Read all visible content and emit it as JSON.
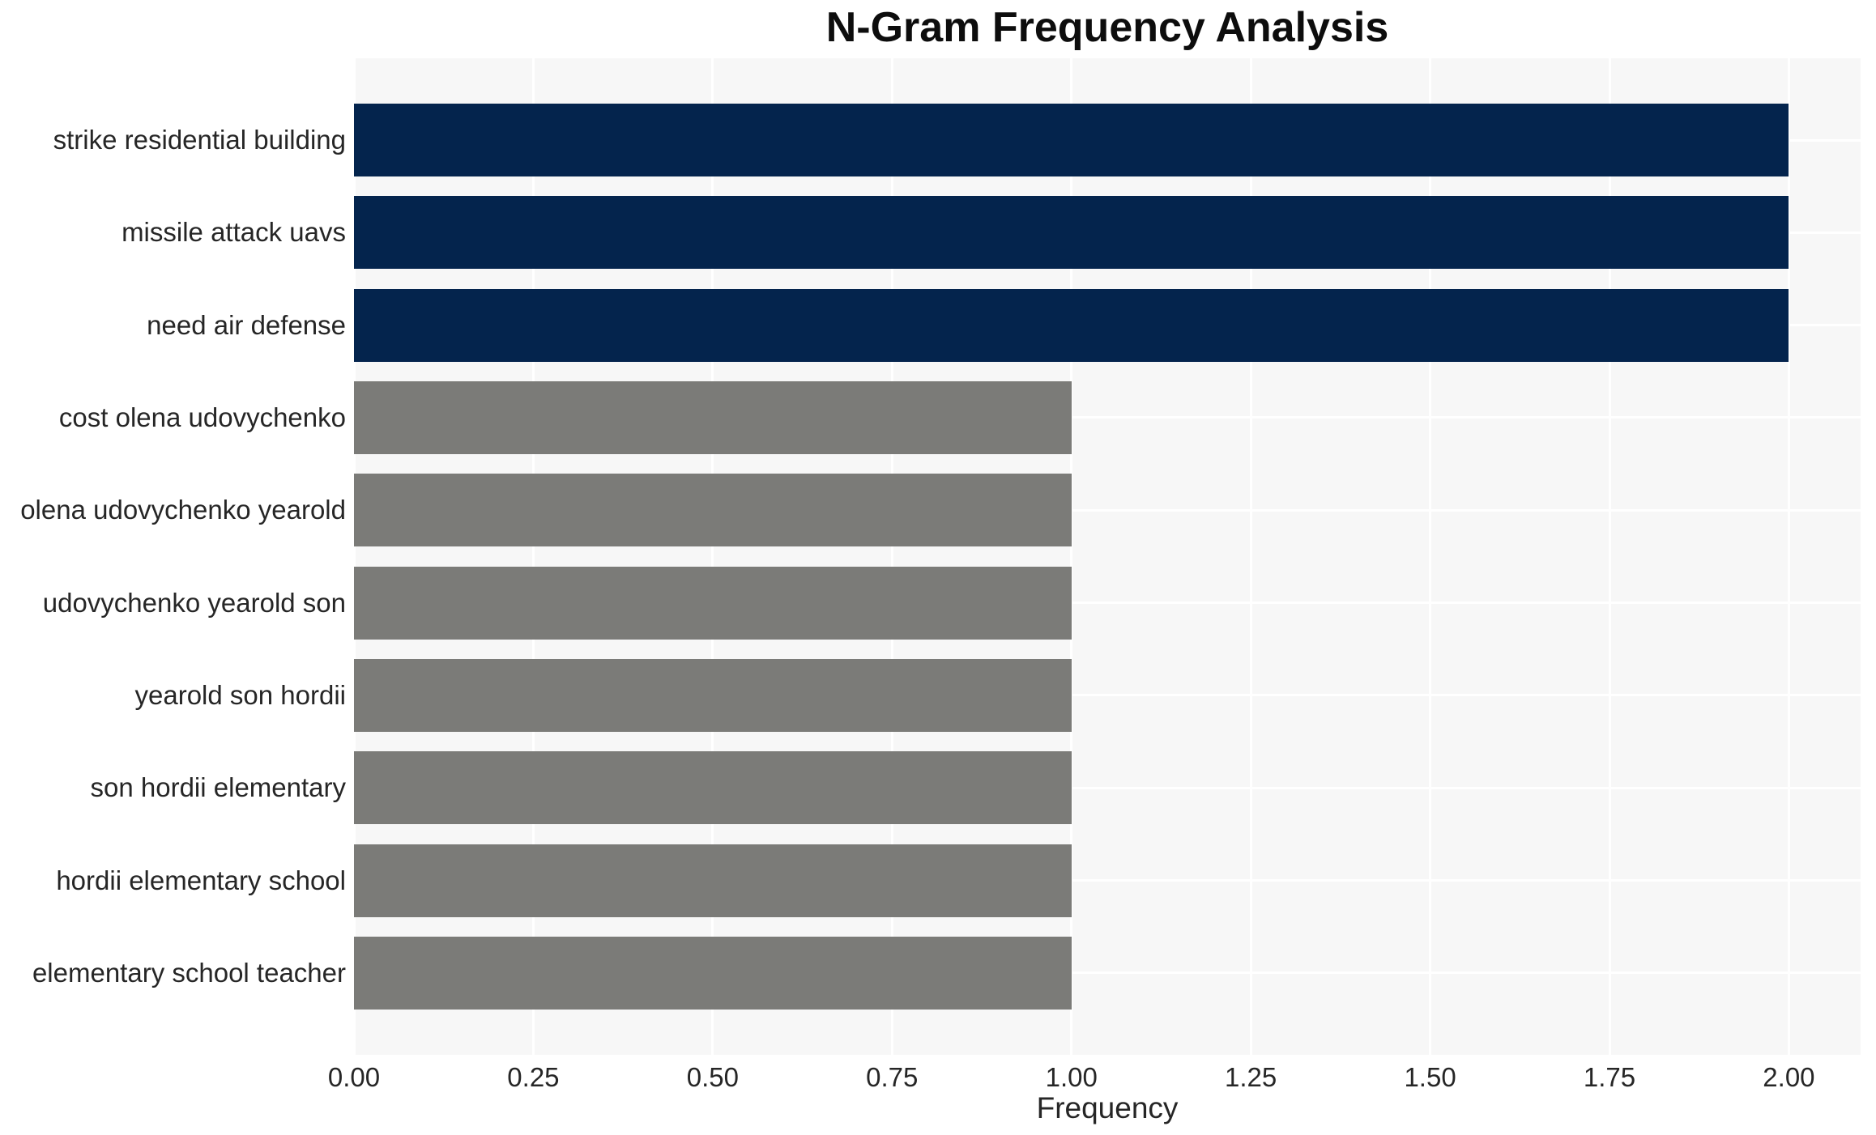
{
  "chart_data": {
    "type": "bar",
    "orientation": "horizontal",
    "title": "N-Gram Frequency Analysis",
    "xlabel": "Frequency",
    "ylabel": "",
    "categories": [
      "strike residential building",
      "missile attack uavs",
      "need air defense",
      "cost olena udovychenko",
      "olena udovychenko yearold",
      "udovychenko yearold son",
      "yearold son hordii",
      "son hordii elementary",
      "hordii elementary school",
      "elementary school teacher"
    ],
    "values": [
      2,
      2,
      2,
      1,
      1,
      1,
      1,
      1,
      1,
      1
    ],
    "bar_colors": [
      "#04244d",
      "#04244d",
      "#04244d",
      "#7b7b78",
      "#7b7b78",
      "#7b7b78",
      "#7b7b78",
      "#7b7b78",
      "#7b7b78",
      "#7b7b78"
    ],
    "xlim": [
      0,
      2.1
    ],
    "xticks": [
      {
        "value": 0.0,
        "label": "0.00"
      },
      {
        "value": 0.25,
        "label": "0.25"
      },
      {
        "value": 0.5,
        "label": "0.50"
      },
      {
        "value": 0.75,
        "label": "0.75"
      },
      {
        "value": 1.0,
        "label": "1.00"
      },
      {
        "value": 1.25,
        "label": "1.25"
      },
      {
        "value": 1.5,
        "label": "1.50"
      },
      {
        "value": 1.75,
        "label": "1.75"
      },
      {
        "value": 2.0,
        "label": "2.00"
      }
    ],
    "grid": true,
    "legend": false,
    "panel_background": "#f7f7f7",
    "gridline_color": "#ffffff",
    "navy_color": "#04244d",
    "gray_color": "#7b7b78"
  }
}
